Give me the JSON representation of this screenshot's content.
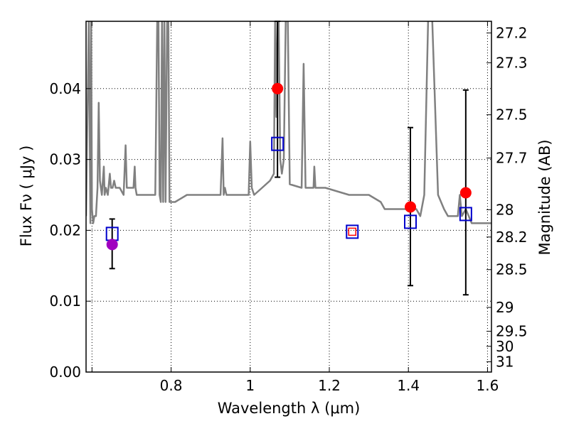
{
  "chart_data": {
    "type": "scatter",
    "xlabel": "Wavelength  λ (μm)",
    "ylabel": "Flux  Fν  ( μJy )",
    "y2label": "Magnitude (AB)",
    "xlim": [
      0.585,
      1.61
    ],
    "ylim": [
      0.0,
      0.0495
    ],
    "grid": true,
    "x_ticks": [
      {
        "value": 0.6,
        "label": ""
      },
      {
        "value": 0.8,
        "label": "0.8"
      },
      {
        "value": 1.0,
        "label": "1"
      },
      {
        "value": 1.2,
        "label": "1.2"
      },
      {
        "value": 1.4,
        "label": "1.4"
      },
      {
        "value": 1.6,
        "label": "1.6"
      }
    ],
    "y_ticks": [
      {
        "value": 0.0,
        "label": "0.00"
      },
      {
        "value": 0.01,
        "label": "0.01"
      },
      {
        "value": 0.02,
        "label": "0.02"
      },
      {
        "value": 0.03,
        "label": "0.03"
      },
      {
        "value": 0.04,
        "label": "0.04"
      }
    ],
    "magnitude_ticks": [
      "27.2",
      "27.3",
      "27.5",
      "27.7",
      "28",
      "28.2",
      "28.5",
      "29",
      "29.5",
      "30",
      "31"
    ],
    "series": [
      {
        "kind": "template_spectrum",
        "color": "#808080",
        "x": [
          0.585,
          0.592,
          0.596,
          0.598,
          0.6,
          0.603,
          0.606,
          0.61,
          0.614,
          0.617,
          0.62,
          0.625,
          0.63,
          0.632,
          0.635,
          0.64,
          0.645,
          0.648,
          0.652,
          0.656,
          0.66,
          0.67,
          0.68,
          0.685,
          0.688,
          0.692,
          0.698,
          0.705,
          0.708,
          0.71,
          0.713,
          0.72,
          0.74,
          0.76,
          0.765,
          0.768,
          0.771,
          0.774,
          0.777,
          0.78,
          0.783,
          0.786,
          0.79,
          0.793,
          0.796,
          0.799,
          0.802,
          0.81,
          0.84,
          0.88,
          0.925,
          0.93,
          0.933,
          0.936,
          0.94,
          0.96,
          0.99,
          0.996,
          1.0,
          1.004,
          1.01,
          1.03,
          1.05,
          1.06,
          1.063,
          1.066,
          1.069,
          1.072,
          1.076,
          1.08,
          1.085,
          1.09,
          1.095,
          1.1,
          1.13,
          1.135,
          1.14,
          1.16,
          1.162,
          1.165,
          1.17,
          1.19,
          1.25,
          1.3,
          1.33,
          1.34,
          1.35,
          1.37,
          1.39,
          1.405,
          1.42,
          1.43,
          1.44,
          1.45,
          1.46,
          1.475,
          1.49,
          1.5,
          1.51,
          1.525,
          1.53,
          1.535,
          1.545,
          1.56,
          1.6,
          1.61
        ],
        "y": [
          0.022,
          0.05,
          0.021,
          0.05,
          0.023,
          0.021,
          0.022,
          0.022,
          0.026,
          0.038,
          0.027,
          0.025,
          0.029,
          0.025,
          0.026,
          0.025,
          0.028,
          0.026,
          0.026,
          0.027,
          0.026,
          0.026,
          0.025,
          0.032,
          0.026,
          0.026,
          0.026,
          0.026,
          0.029,
          0.026,
          0.025,
          0.025,
          0.025,
          0.025,
          0.05,
          0.05,
          0.025,
          0.024,
          0.05,
          0.024,
          0.05,
          0.024,
          0.05,
          0.05,
          0.024,
          0.024,
          0.024,
          0.024,
          0.025,
          0.025,
          0.025,
          0.033,
          0.025,
          0.026,
          0.025,
          0.025,
          0.025,
          0.025,
          0.0325,
          0.026,
          0.025,
          0.026,
          0.027,
          0.028,
          0.05,
          0.036,
          0.05,
          0.05,
          0.03,
          0.028,
          0.03,
          0.05,
          0.05,
          0.0265,
          0.026,
          0.0435,
          0.026,
          0.026,
          0.029,
          0.026,
          0.026,
          0.026,
          0.025,
          0.025,
          0.024,
          0.023,
          0.023,
          0.023,
          0.023,
          0.023,
          0.023,
          0.022,
          0.025,
          0.05,
          0.05,
          0.025,
          0.023,
          0.022,
          0.022,
          0.022,
          0.025,
          0.022,
          0.023,
          0.021,
          0.021,
          0.021
        ]
      },
      {
        "kind": "observed",
        "marker": "circle",
        "points": [
          {
            "x": 0.651,
            "y": 0.018,
            "yerr_lo": 0.0146,
            "yerr_hi": 0.0216,
            "color": "#a000c0"
          },
          {
            "x": 1.069,
            "y": 0.04,
            "yerr_lo": 0.0275,
            "yerr_hi": 0.0495,
            "color": "#ff0000"
          },
          {
            "x": 1.405,
            "y": 0.0233,
            "yerr_lo": 0.0122,
            "yerr_hi": 0.0345,
            "color": "#ff0000"
          },
          {
            "x": 1.545,
            "y": 0.0253,
            "yerr_lo": 0.0109,
            "yerr_hi": 0.0398,
            "color": "#ff0000"
          }
        ]
      },
      {
        "kind": "model",
        "marker": "square",
        "color": "#0000cc",
        "points": [
          {
            "x": 0.651,
            "y": 0.0195
          },
          {
            "x": 1.069,
            "y": 0.0322
          },
          {
            "x": 1.258,
            "y": 0.0198
          },
          {
            "x": 1.405,
            "y": 0.0212
          },
          {
            "x": 1.545,
            "y": 0.0223
          }
        ]
      },
      {
        "kind": "upper_limit",
        "marker": "square",
        "color": "#ff0000",
        "points": [
          {
            "x": 1.258,
            "y": 0.0198
          }
        ]
      }
    ]
  }
}
